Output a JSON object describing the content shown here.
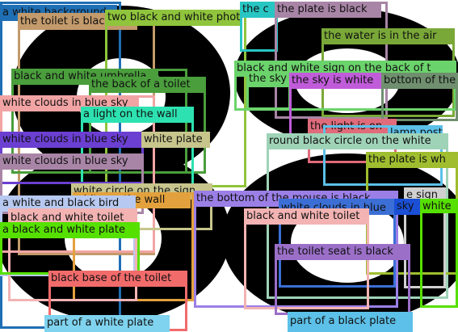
{
  "colors": {
    "c1": "#1f6fb4",
    "c2": "#c39a6b",
    "c3": "#8fc43c",
    "c4": "#28c6c3",
    "c5": "#a885a6",
    "c6": "#7aa838",
    "c7": "#6bd36b",
    "c8": "#c05cd9",
    "c9": "#6f8f6f",
    "c10": "#4a9e3c",
    "c11": "#f2a4a4",
    "c12": "#2de2b0",
    "c13": "#6b3fd1",
    "c14": "#c7c58c",
    "c15": "#9fd3b8",
    "c16": "#e06b7a",
    "c17": "#3b6fd6",
    "c18": "#cfa0d8",
    "c19": "#9b7fe6",
    "c20": "#b7c9f0",
    "c21": "#e3a13d",
    "c22": "#f3b3b3",
    "c23": "#56e000",
    "c24": "#9b6fc8",
    "c25": "#f26b6b",
    "c26": "#7fd3ef",
    "c27": "#5cc0e8",
    "c28": "#d0d0d0",
    "c29": "#1a4fd6",
    "c30": "#9fbd2f"
  },
  "regions": [
    {
      "name": "box-white-background",
      "label": "a white background",
      "color": "c1"
    },
    {
      "name": "box-toilet-is-black",
      "label": "the toilet is black",
      "color": "c2"
    },
    {
      "name": "box-two-black-white-photo",
      "label": "two black and white photo",
      "color": "c3"
    },
    {
      "name": "box-cut-label",
      "label": "the c",
      "color": "c4"
    },
    {
      "name": "box-plate-is-black-top",
      "label": "the plate is black",
      "color": "c5"
    },
    {
      "name": "box-water-in-air",
      "label": "the water is in the air",
      "color": "c6"
    },
    {
      "name": "box-sign-on-back",
      "label": "black and white sign on the back of t",
      "color": "c7"
    },
    {
      "name": "box-black-white-umbrella",
      "label": "black and white umbrella",
      "color": "c10"
    },
    {
      "name": "box-the-sky",
      "label": "the sky",
      "color": "c7"
    },
    {
      "name": "box-sky-is-white",
      "label": "the sky is white",
      "color": "c8"
    },
    {
      "name": "box-bottom-of-the",
      "label": "bottom of the",
      "color": "c9"
    },
    {
      "name": "box-back-of-toilet",
      "label": "the back of a toilet",
      "color": "c10"
    },
    {
      "name": "box-white-clouds-blue-sky-1",
      "label": "white clouds in blue sky",
      "color": "c11"
    },
    {
      "name": "box-light-on-wall",
      "label": "a light on the wall",
      "color": "c12"
    },
    {
      "name": "box-light-is-on",
      "label": "the light is on",
      "color": "c16"
    },
    {
      "name": "box-lamp-post",
      "label": "lamp post",
      "color": "c27"
    },
    {
      "name": "box-white-clouds-blue-sky-2",
      "label": "white clouds in blue sky",
      "color": "c13"
    },
    {
      "name": "box-white-plate",
      "label": "white plate",
      "color": "c14"
    },
    {
      "name": "box-round-black-circle",
      "label": "round black circle on the white",
      "color": "c15"
    },
    {
      "name": "box-white-clouds-blue-sky-3",
      "label": "white clouds in blue sky",
      "color": "c5"
    },
    {
      "name": "box-plate-is-white",
      "label": "the plate is wh",
      "color": "c30"
    },
    {
      "name": "box-white-circle-on-sign",
      "label": "white circle on the sign",
      "color": "c14"
    },
    {
      "name": "box-bottom-of-mouse",
      "label": "the bottom of the mouse is black",
      "color": "c19"
    },
    {
      "name": "box-white-on-the-wall",
      "label": "white on the wall",
      "color": "c21"
    },
    {
      "name": "box-white-black-bird",
      "label": "a white and black bird",
      "color": "c20"
    },
    {
      "name": "box-sign-right",
      "label": "e sign",
      "color": "c28"
    },
    {
      "name": "box-white-clouds-in-blue",
      "label": "white clouds in blue",
      "color": "c17"
    },
    {
      "name": "box-sky-right",
      "label": "sky",
      "color": "c29"
    },
    {
      "name": "box-white-right",
      "label": "white",
      "color": "c23"
    },
    {
      "name": "box-black-white-toilet-left",
      "label": "black and white toilet",
      "color": "c22"
    },
    {
      "name": "box-black-white-toilet-mid",
      "label": "black and white toilet",
      "color": "c22"
    },
    {
      "name": "box-black-white-plate",
      "label": "a black and white plate",
      "color": "c23"
    },
    {
      "name": "box-toilet-seat-is-black",
      "label": "the toilet seat is black",
      "color": "c24"
    },
    {
      "name": "box-black-base-of-toilet",
      "label": "black base of the toilet",
      "color": "c25"
    },
    {
      "name": "box-part-of-white-plate",
      "label": "part of a white plate",
      "color": "c26"
    },
    {
      "name": "box-part-of-black-plate",
      "label": "part of a black plate",
      "color": "c27"
    }
  ]
}
